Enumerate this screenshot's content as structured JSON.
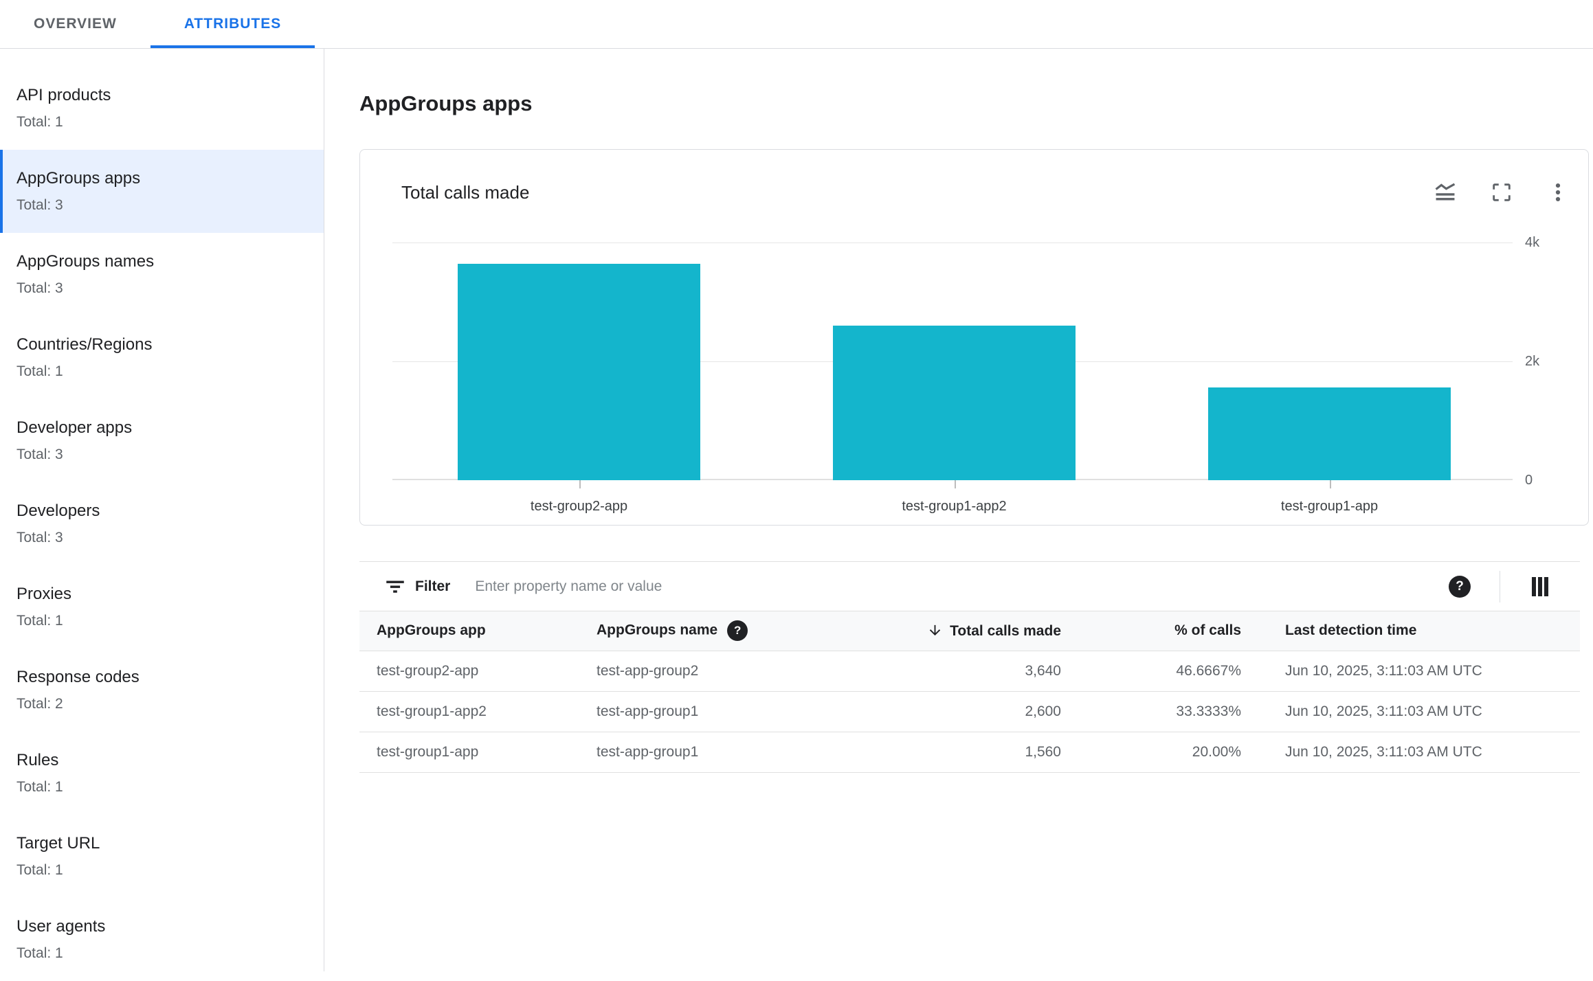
{
  "tabs": [
    {
      "label": "OVERVIEW",
      "active": false
    },
    {
      "label": "ATTRIBUTES",
      "active": true
    }
  ],
  "sidebar": {
    "items": [
      {
        "label": "API products",
        "total": "Total: 1",
        "selected": false
      },
      {
        "label": "AppGroups apps",
        "total": "Total: 3",
        "selected": true
      },
      {
        "label": "AppGroups names",
        "total": "Total: 3",
        "selected": false
      },
      {
        "label": "Countries/Regions",
        "total": "Total: 1",
        "selected": false
      },
      {
        "label": "Developer apps",
        "total": "Total: 3",
        "selected": false
      },
      {
        "label": "Developers",
        "total": "Total: 3",
        "selected": false
      },
      {
        "label": "Proxies",
        "total": "Total: 1",
        "selected": false
      },
      {
        "label": "Response codes",
        "total": "Total: 2",
        "selected": false
      },
      {
        "label": "Rules",
        "total": "Total: 1",
        "selected": false
      },
      {
        "label": "Target URL",
        "total": "Total: 1",
        "selected": false
      },
      {
        "label": "User agents",
        "total": "Total: 1",
        "selected": false
      }
    ]
  },
  "main": {
    "title": "AppGroups apps",
    "chart_card": {
      "title": "Total calls made",
      "icons": [
        "chart-type-icon",
        "fullscreen-icon",
        "more-options-icon"
      ]
    },
    "filter": {
      "label": "Filter",
      "placeholder": "Enter property name or value",
      "help_icon": "?"
    },
    "table": {
      "columns": [
        "AppGroups app",
        "AppGroups name",
        "Total calls made",
        "% of calls",
        "Last detection time"
      ],
      "sort_column": "Total calls made",
      "sort_direction": "descending",
      "name_help_icon": "?",
      "rows": [
        [
          "test-group2-app",
          "test-app-group2",
          "3,640",
          "46.6667%",
          "Jun 10, 2025, 3:11:03 AM UTC"
        ],
        [
          "test-group1-app2",
          "test-app-group1",
          "2,600",
          "33.3333%",
          "Jun 10, 2025, 3:11:03 AM UTC"
        ],
        [
          "test-group1-app",
          "test-app-group1",
          "1,560",
          "20.00%",
          "Jun 10, 2025, 3:11:03 AM UTC"
        ]
      ]
    }
  },
  "chart_data": {
    "type": "bar",
    "title": "Total calls made",
    "categories": [
      "test-group2-app",
      "test-group1-app2",
      "test-group1-app"
    ],
    "values": [
      3640,
      2600,
      1560
    ],
    "xlabel": "",
    "ylabel": "",
    "ylim": [
      0,
      4000
    ],
    "ytick_labels": [
      "4k",
      "2k",
      "0"
    ],
    "grid": "horizontal",
    "legend": "none",
    "bar_color": "#14b5cc"
  },
  "colors": {
    "accent_blue": "#1a73e8",
    "selected_bg": "#e8f0fe",
    "bar_teal": "#14b5cc",
    "border": "#dadce0",
    "table_header_bg": "#f8f9fa",
    "text_dark": "#202124",
    "text_gray": "#5f6368"
  }
}
